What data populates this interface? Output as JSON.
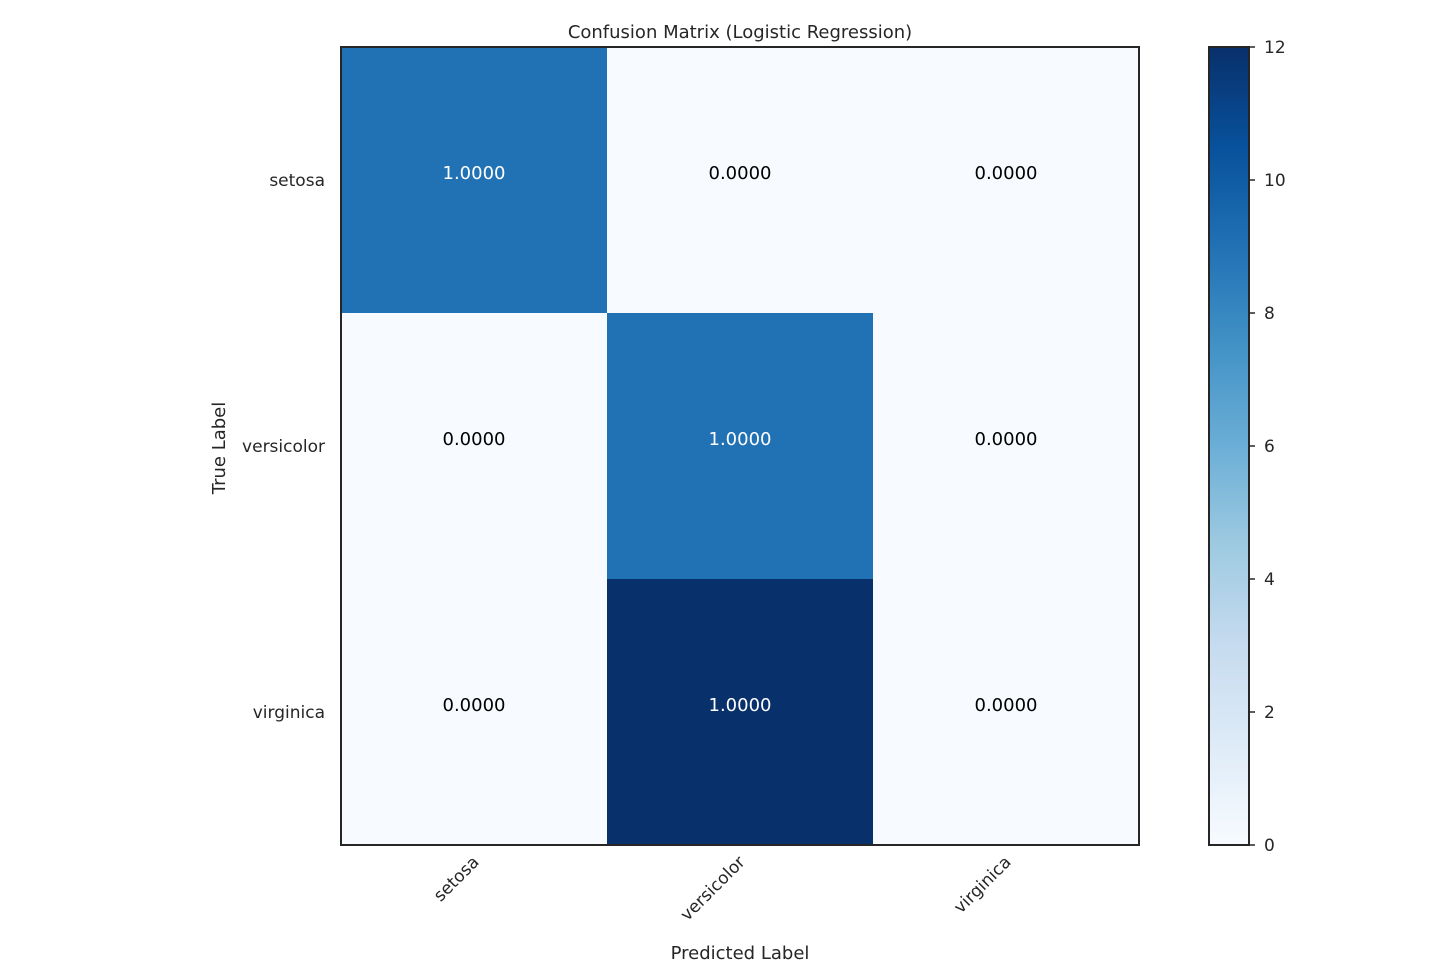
{
  "chart_data": {
    "type": "heatmap",
    "title": "Confusion Matrix (Logistic Regression)",
    "xlabel": "Predicted Label",
    "ylabel": "True Label",
    "x_categories": [
      "setosa",
      "versicolor",
      "virginica"
    ],
    "y_categories": [
      "setosa",
      "versicolor",
      "virginica"
    ],
    "color_values": [
      [
        9,
        0,
        0
      ],
      [
        0,
        9,
        0
      ],
      [
        0,
        12,
        0
      ]
    ],
    "cell_labels": [
      [
        "1.0000",
        "0.0000",
        "0.0000"
      ],
      [
        "0.0000",
        "1.0000",
        "0.0000"
      ],
      [
        "0.0000",
        "1.0000",
        "0.0000"
      ]
    ],
    "colormap": "Blues",
    "colorbar": {
      "range": [
        0,
        12
      ],
      "ticks": [
        0,
        2,
        4,
        6,
        8,
        10,
        12
      ],
      "tick_labels": [
        "0",
        "2",
        "4",
        "6",
        "8",
        "10",
        "12"
      ]
    },
    "text_colors": {
      "on_dark": "#ffffff",
      "on_light": "#000000"
    },
    "grid": false
  }
}
